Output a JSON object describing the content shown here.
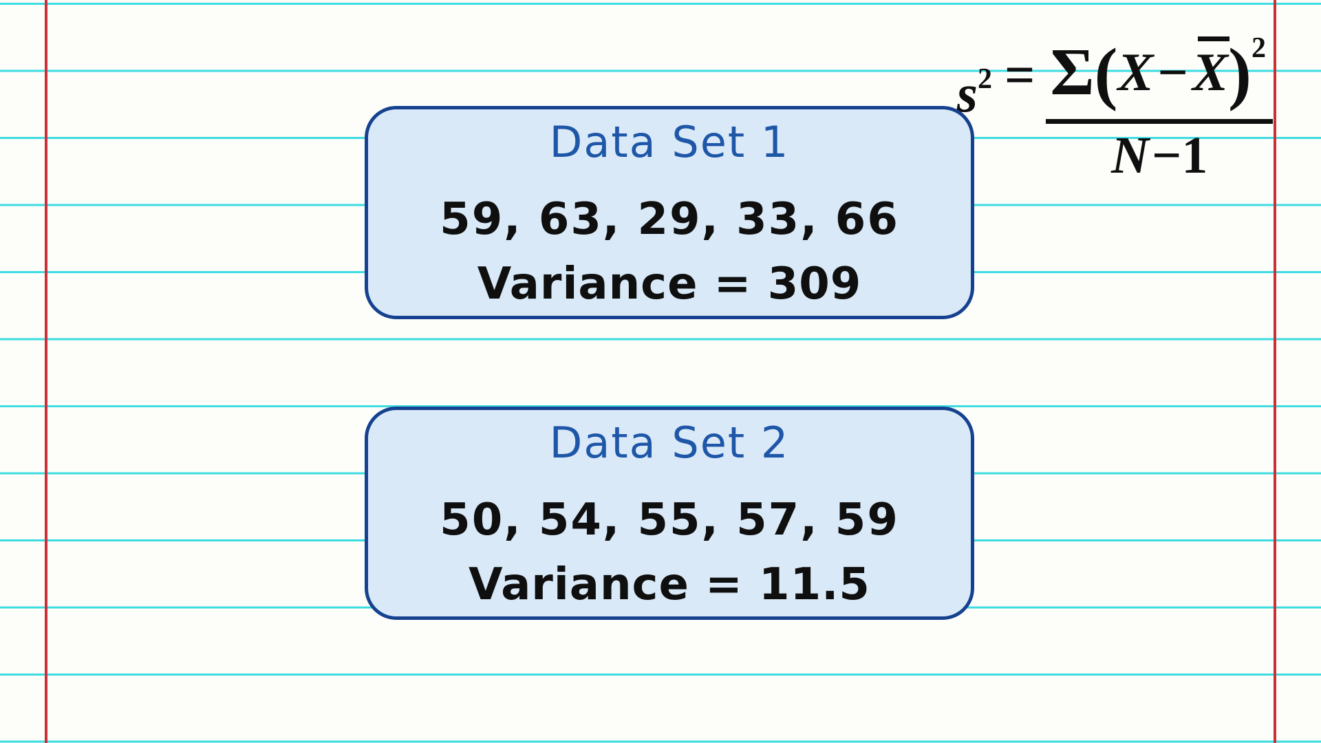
{
  "colors": {
    "accent-blue": "#1e56a8",
    "border-blue": "#15418f",
    "card-fill": "#d9e9f7",
    "line-cyan": "#3cdce1",
    "margin-red": "#cb3038",
    "ink-black": "#0f0f0f",
    "paper": "#fdfdfa"
  },
  "formula": {
    "variable": "s",
    "variable_exponent": "2",
    "equals_sign": "=",
    "sigma": "Σ",
    "open_paren": "(",
    "x_term": "X",
    "minus_sign": "−",
    "x_bar_term": "X",
    "close_paren": ")",
    "exponent": "2",
    "denominator_variable": "N",
    "denominator_rest": "−1"
  },
  "cards": [
    {
      "title": "Data Set 1",
      "values": [
        59,
        63,
        29,
        33,
        66
      ],
      "values_text": "59, 63, 29, 33, 66",
      "variance": 309,
      "variance_text": "Variance = 309"
    },
    {
      "title": "Data Set 2",
      "values": [
        50,
        54,
        55,
        57,
        59
      ],
      "values_text": "50, 54, 55, 57, 59",
      "variance": 11.5,
      "variance_text": "Variance = 11.5"
    }
  ]
}
